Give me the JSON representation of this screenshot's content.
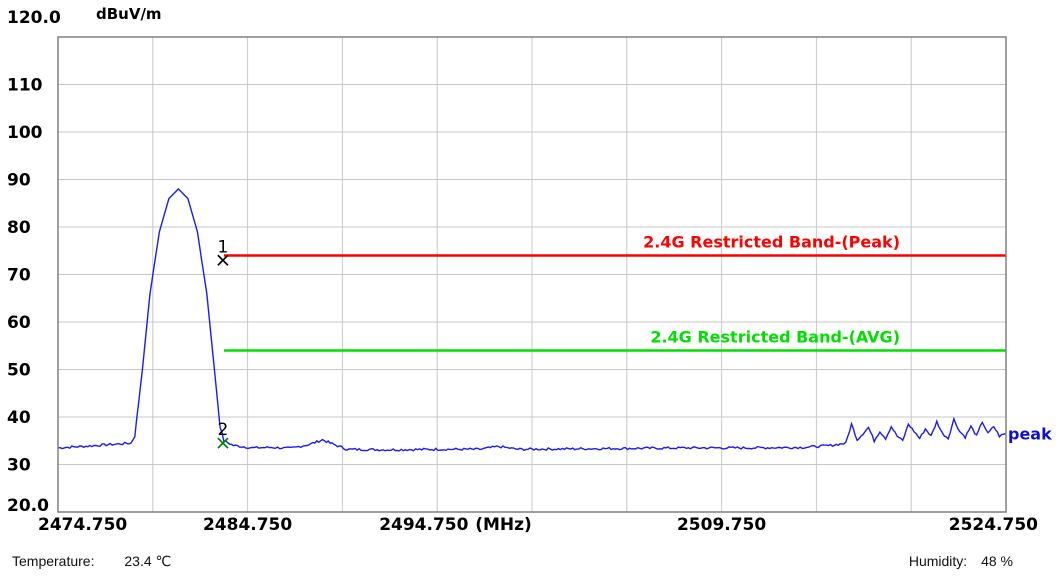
{
  "chart_data": {
    "type": "line",
    "ylabel": "dBuV/m",
    "xlabel": "(MHz)",
    "xlim": [
      2474.75,
      2524.75
    ],
    "ylim": [
      20,
      120
    ],
    "y_ticks": [
      "120.0",
      "110",
      "100",
      "90",
      "80",
      "70",
      "60",
      "50",
      "40",
      "30",
      "20.0"
    ],
    "y_tick_values": [
      120,
      110,
      100,
      90,
      80,
      70,
      60,
      50,
      40,
      30,
      20
    ],
    "x_ticks": [
      "2474.750",
      "2484.750",
      "2494.750",
      "2509.750",
      "2524.750"
    ],
    "x_tick_values": [
      2474.75,
      2484.75,
      2494.75,
      2509.75,
      2524.75
    ],
    "grid": true,
    "limits": [
      {
        "label": "2.4G Restricted Band-(Peak)",
        "value": 74,
        "x_start": 2483.5,
        "color": "#ff0000"
      },
      {
        "label": "2.4G Restricted Band-(AVG)",
        "value": 54,
        "x_start": 2483.5,
        "color": "#00e000"
      }
    ],
    "series": [
      {
        "name": "peak",
        "color": "#1a1aff",
        "points": [
          [
            2474.75,
            33.5
          ],
          [
            2476.0,
            33.8
          ],
          [
            2477.5,
            34.2
          ],
          [
            2478.6,
            34.5
          ],
          [
            2478.8,
            36
          ],
          [
            2479.2,
            50
          ],
          [
            2479.6,
            66
          ],
          [
            2480.1,
            79
          ],
          [
            2480.6,
            86
          ],
          [
            2481.1,
            88
          ],
          [
            2481.6,
            86
          ],
          [
            2482.1,
            79
          ],
          [
            2482.6,
            66
          ],
          [
            2483.0,
            50
          ],
          [
            2483.3,
            38
          ],
          [
            2483.5,
            35
          ],
          [
            2484.0,
            34
          ],
          [
            2485.0,
            33.5
          ],
          [
            2486.0,
            33.6
          ],
          [
            2487.0,
            33.4
          ],
          [
            2488.0,
            34.2
          ],
          [
            2488.7,
            35.2
          ],
          [
            2489.3,
            34.2
          ],
          [
            2490.0,
            33.2
          ],
          [
            2492.0,
            33.1
          ],
          [
            2495.0,
            33.2
          ],
          [
            2497.0,
            33.2
          ],
          [
            2498.0,
            33.8
          ],
          [
            2499.0,
            33.2
          ],
          [
            2502.0,
            33.3
          ],
          [
            2505.0,
            33.4
          ],
          [
            2508.0,
            33.5
          ],
          [
            2511.0,
            33.5
          ],
          [
            2514.0,
            33.6
          ],
          [
            2515.5,
            34.0
          ],
          [
            2516.3,
            34.5
          ],
          [
            2516.6,
            38.5
          ],
          [
            2516.9,
            35.2
          ],
          [
            2517.2,
            36.5
          ],
          [
            2517.5,
            37.8
          ],
          [
            2517.8,
            35.0
          ],
          [
            2518.1,
            37.0
          ],
          [
            2518.4,
            35.5
          ],
          [
            2518.7,
            38.0
          ],
          [
            2519.0,
            36.0
          ],
          [
            2519.3,
            35.0
          ],
          [
            2519.6,
            38.5
          ],
          [
            2519.9,
            37.0
          ],
          [
            2520.2,
            35.5
          ],
          [
            2520.5,
            37.5
          ],
          [
            2520.8,
            36.0
          ],
          [
            2521.1,
            39.0
          ],
          [
            2521.4,
            36.5
          ],
          [
            2521.7,
            35.5
          ],
          [
            2522.0,
            39.5
          ],
          [
            2522.3,
            37.0
          ],
          [
            2522.6,
            35.8
          ],
          [
            2522.9,
            38.0
          ],
          [
            2523.2,
            36.0
          ],
          [
            2523.5,
            39.0
          ],
          [
            2523.8,
            36.5
          ],
          [
            2524.1,
            38.0
          ],
          [
            2524.4,
            36.0
          ],
          [
            2524.75,
            36.5
          ]
        ]
      }
    ],
    "markers": [
      {
        "label": "1",
        "x": 2483.5,
        "y": 73,
        "color": "#000000"
      },
      {
        "label": "2",
        "x": 2483.5,
        "y": 34.5,
        "color": "#008000"
      }
    ],
    "trace_label": "peak"
  },
  "footer": {
    "temperature_label": "Temperature:",
    "temperature_value": "23.4 ℃",
    "humidity_label": "Humidity:",
    "humidity_value": "48 %"
  }
}
